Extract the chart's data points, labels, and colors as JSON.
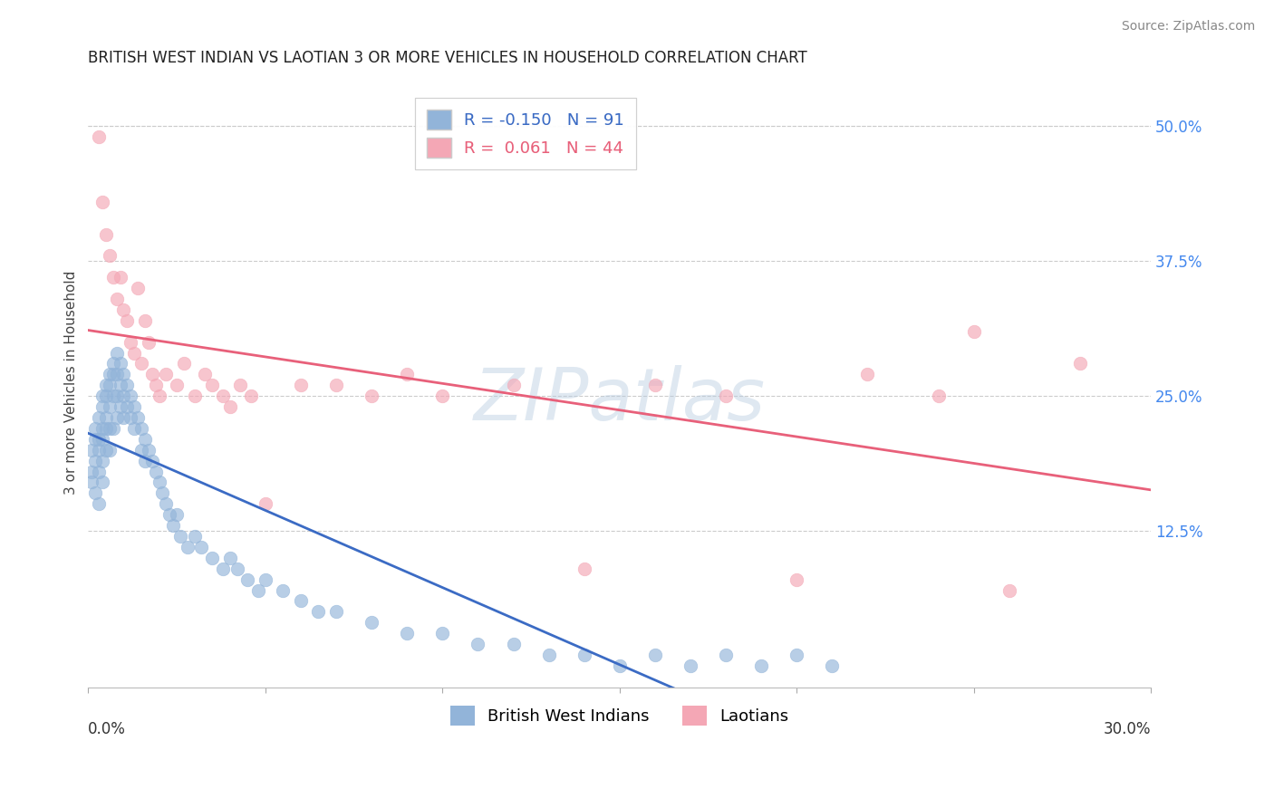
{
  "title": "BRITISH WEST INDIAN VS LAOTIAN 3 OR MORE VEHICLES IN HOUSEHOLD CORRELATION CHART",
  "source": "Source: ZipAtlas.com",
  "ylabel": "3 or more Vehicles in Household",
  "yticks": [
    "50.0%",
    "37.5%",
    "25.0%",
    "12.5%"
  ],
  "ytick_vals": [
    0.5,
    0.375,
    0.25,
    0.125
  ],
  "xlim": [
    0.0,
    0.3
  ],
  "ylim": [
    -0.02,
    0.545
  ],
  "legend_group1": "British West Indians",
  "legend_group2": "Laotians",
  "blue_color": "#92B4D9",
  "pink_color": "#F4A7B5",
  "blue_line_color": "#3B6BC4",
  "pink_line_color": "#E8607A",
  "blue_line_dash_color": "#AABFDF",
  "watermark": "ZIPatlas",
  "blue_R": -0.15,
  "blue_N": 91,
  "pink_R": 0.061,
  "pink_N": 44,
  "blue_x": [
    0.001,
    0.001,
    0.001,
    0.002,
    0.002,
    0.002,
    0.002,
    0.003,
    0.003,
    0.003,
    0.003,
    0.003,
    0.004,
    0.004,
    0.004,
    0.004,
    0.004,
    0.004,
    0.005,
    0.005,
    0.005,
    0.005,
    0.005,
    0.006,
    0.006,
    0.006,
    0.006,
    0.006,
    0.007,
    0.007,
    0.007,
    0.007,
    0.008,
    0.008,
    0.008,
    0.008,
    0.009,
    0.009,
    0.009,
    0.01,
    0.01,
    0.01,
    0.011,
    0.011,
    0.012,
    0.012,
    0.013,
    0.013,
    0.014,
    0.015,
    0.015,
    0.016,
    0.016,
    0.017,
    0.018,
    0.019,
    0.02,
    0.021,
    0.022,
    0.023,
    0.024,
    0.025,
    0.026,
    0.028,
    0.03,
    0.032,
    0.035,
    0.038,
    0.04,
    0.042,
    0.045,
    0.048,
    0.05,
    0.055,
    0.06,
    0.065,
    0.07,
    0.08,
    0.09,
    0.1,
    0.11,
    0.12,
    0.13,
    0.14,
    0.15,
    0.16,
    0.17,
    0.18,
    0.19,
    0.2,
    0.21
  ],
  "blue_y": [
    0.2,
    0.18,
    0.17,
    0.22,
    0.21,
    0.19,
    0.16,
    0.23,
    0.21,
    0.2,
    0.18,
    0.15,
    0.25,
    0.24,
    0.22,
    0.21,
    0.19,
    0.17,
    0.26,
    0.25,
    0.23,
    0.22,
    0.2,
    0.27,
    0.26,
    0.24,
    0.22,
    0.2,
    0.28,
    0.27,
    0.25,
    0.22,
    0.29,
    0.27,
    0.25,
    0.23,
    0.28,
    0.26,
    0.24,
    0.27,
    0.25,
    0.23,
    0.26,
    0.24,
    0.25,
    0.23,
    0.24,
    0.22,
    0.23,
    0.22,
    0.2,
    0.21,
    0.19,
    0.2,
    0.19,
    0.18,
    0.17,
    0.16,
    0.15,
    0.14,
    0.13,
    0.14,
    0.12,
    0.11,
    0.12,
    0.11,
    0.1,
    0.09,
    0.1,
    0.09,
    0.08,
    0.07,
    0.08,
    0.07,
    0.06,
    0.05,
    0.05,
    0.04,
    0.03,
    0.03,
    0.02,
    0.02,
    0.01,
    0.01,
    0.0,
    0.01,
    0.0,
    0.01,
    0.0,
    0.01,
    0.0
  ],
  "pink_x": [
    0.003,
    0.004,
    0.005,
    0.006,
    0.007,
    0.008,
    0.009,
    0.01,
    0.011,
    0.012,
    0.013,
    0.014,
    0.015,
    0.016,
    0.017,
    0.018,
    0.019,
    0.02,
    0.022,
    0.025,
    0.027,
    0.03,
    0.033,
    0.035,
    0.038,
    0.04,
    0.043,
    0.046,
    0.05,
    0.06,
    0.07,
    0.08,
    0.09,
    0.1,
    0.12,
    0.14,
    0.16,
    0.18,
    0.2,
    0.22,
    0.24,
    0.25,
    0.26,
    0.28
  ],
  "pink_y": [
    0.49,
    0.43,
    0.4,
    0.38,
    0.36,
    0.34,
    0.36,
    0.33,
    0.32,
    0.3,
    0.29,
    0.35,
    0.28,
    0.32,
    0.3,
    0.27,
    0.26,
    0.25,
    0.27,
    0.26,
    0.28,
    0.25,
    0.27,
    0.26,
    0.25,
    0.24,
    0.26,
    0.25,
    0.15,
    0.26,
    0.26,
    0.25,
    0.27,
    0.25,
    0.26,
    0.09,
    0.26,
    0.25,
    0.08,
    0.27,
    0.25,
    0.31,
    0.07,
    0.28
  ]
}
